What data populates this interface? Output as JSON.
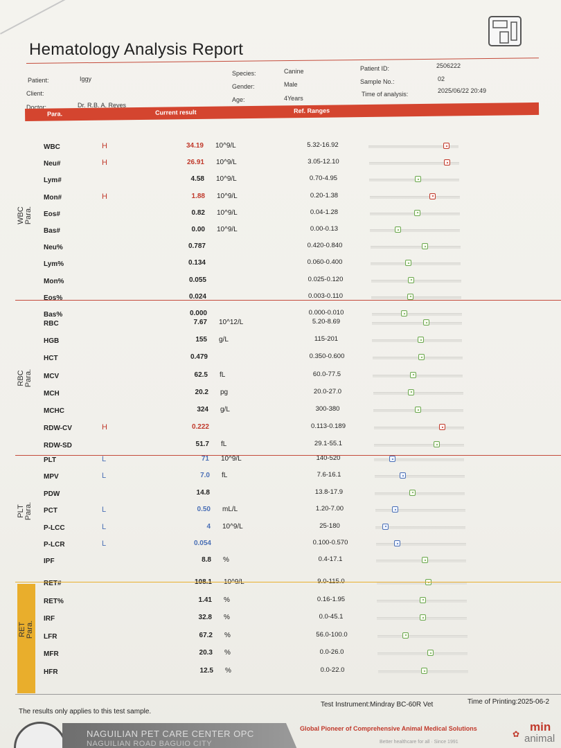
{
  "report": {
    "title": "Hematology Analysis Report",
    "patient_label": "Patient:",
    "patient": "Iggy",
    "client_label": "Client:",
    "client": "",
    "doctor_label": "Doctor:",
    "doctor": "Dr. R.B. A. Reyes",
    "species_label": "Species:",
    "species": "Canine",
    "gender_label": "Gender:",
    "gender": "Male",
    "age_label": "Age:",
    "age": "4Years",
    "patient_id_label": "Patient ID:",
    "patient_id": "2506222",
    "sample_no_label": "Sample No.:",
    "sample_no": "02",
    "time_label": "Time of analysis:",
    "time": "2025/06/22 20:49"
  },
  "columns": {
    "para": "Para.",
    "current": "Current result",
    "ref": "Ref. Ranges"
  },
  "groups": {
    "wbc": "WBC\nPara.",
    "rbc": "RBC\nPara.",
    "plt": "PLT\nPara.",
    "ret": "RET\nPara."
  },
  "rows": [
    {
      "name": "WBC",
      "flag": "H",
      "value": "34.19",
      "unit": "10^9/L",
      "ref": "5.32-16.92",
      "pos": 0.9
    },
    {
      "name": "Neu#",
      "flag": "H",
      "value": "26.91",
      "unit": "10^9/L",
      "ref": "3.05-12.10",
      "pos": 0.9
    },
    {
      "name": "Lym#",
      "flag": "",
      "value": "4.58",
      "unit": "10^9/L",
      "ref": "0.70-4.95",
      "pos": 0.55
    },
    {
      "name": "Mon#",
      "flag": "H",
      "value": "1.88",
      "unit": "10^9/L",
      "ref": "0.20-1.38",
      "pos": 0.72
    },
    {
      "name": "Eos#",
      "flag": "",
      "value": "0.82",
      "unit": "10^9/L",
      "ref": "0.04-1.28",
      "pos": 0.53
    },
    {
      "name": "Bas#",
      "flag": "",
      "value": "0.00",
      "unit": "10^9/L",
      "ref": "0.00-0.13",
      "pos": 0.3
    },
    {
      "name": "Neu%",
      "flag": "",
      "value": "0.787",
      "unit": "",
      "ref": "0.420-0.840",
      "pos": 0.62
    },
    {
      "name": "Lym%",
      "flag": "",
      "value": "0.134",
      "unit": "",
      "ref": "0.060-0.400",
      "pos": 0.42
    },
    {
      "name": "Mon%",
      "flag": "",
      "value": "0.055",
      "unit": "",
      "ref": "0.025-0.120",
      "pos": 0.44
    },
    {
      "name": "Eos%",
      "flag": "",
      "value": "0.024",
      "unit": "",
      "ref": "0.003-0.110",
      "pos": 0.43
    },
    {
      "name": "Bas%",
      "flag": "",
      "value": "0.000",
      "unit": "",
      "ref": "0.000-0.010",
      "pos": 0.35
    },
    {
      "name": "RBC",
      "flag": "",
      "value": "7.67",
      "unit": "10^12/L",
      "ref": "5.20-8.69",
      "pos": 0.62
    },
    {
      "name": "HGB",
      "flag": "",
      "value": "155",
      "unit": "g/L",
      "ref": "115-201",
      "pos": 0.55
    },
    {
      "name": "HCT",
      "flag": "",
      "value": "0.479",
      "unit": "",
      "ref": "0.350-0.600",
      "pos": 0.55
    },
    {
      "name": "MCV",
      "flag": "",
      "value": "62.5",
      "unit": "fL",
      "ref": "60.0-77.5",
      "pos": 0.45
    },
    {
      "name": "MCH",
      "flag": "",
      "value": "20.2",
      "unit": "pg",
      "ref": "20.0-27.0",
      "pos": 0.42
    },
    {
      "name": "MCHC",
      "flag": "",
      "value": "324",
      "unit": "g/L",
      "ref": "300-380",
      "pos": 0.5
    },
    {
      "name": "RDW-CV",
      "flag": "H",
      "value": "0.222",
      "unit": "",
      "ref": "0.113-0.189",
      "pos": 0.78
    },
    {
      "name": "RDW-SD",
      "flag": "",
      "value": "51.7",
      "unit": "fL",
      "ref": "29.1-55.1",
      "pos": 0.72
    },
    {
      "name": "PLT",
      "flag": "L",
      "value": "71",
      "unit": "10^9/L",
      "ref": "140-520",
      "pos": 0.18
    },
    {
      "name": "MPV",
      "flag": "L",
      "value": "7.0",
      "unit": "fL",
      "ref": "7.6-16.1",
      "pos": 0.3
    },
    {
      "name": "PDW",
      "flag": "",
      "value": "14.8",
      "unit": "",
      "ref": "13.8-17.9",
      "pos": 0.42
    },
    {
      "name": "PCT",
      "flag": "L",
      "value": "0.50",
      "unit": "mL/L",
      "ref": "1.20-7.00",
      "pos": 0.2
    },
    {
      "name": "P-LCC",
      "flag": "L",
      "value": "4",
      "unit": "10^9/L",
      "ref": "25-180",
      "pos": 0.08
    },
    {
      "name": "P-LCR",
      "flag": "L",
      "value": "0.054",
      "unit": "",
      "ref": "0.100-0.570",
      "pos": 0.22
    },
    {
      "name": "IPF",
      "flag": "",
      "value": "8.8",
      "unit": "%",
      "ref": "0.4-17.1",
      "pos": 0.55
    },
    {
      "name": "RET#",
      "flag": "",
      "value": "108.1",
      "unit": "10^9/L",
      "ref": "9.0-115.0",
      "pos": 0.58
    },
    {
      "name": "RET%",
      "flag": "",
      "value": "1.41",
      "unit": "%",
      "ref": "0.16-1.95",
      "pos": 0.52
    },
    {
      "name": "IRF",
      "flag": "",
      "value": "32.8",
      "unit": "%",
      "ref": "0.0-45.1",
      "pos": 0.52
    },
    {
      "name": "LFR",
      "flag": "",
      "value": "67.2",
      "unit": "%",
      "ref": "56.0-100.0",
      "pos": 0.3
    },
    {
      "name": "MFR",
      "flag": "",
      "value": "20.3",
      "unit": "%",
      "ref": "0.0-26.0",
      "pos": 0.6
    },
    {
      "name": "HFR",
      "flag": "",
      "value": "12.5",
      "unit": "%",
      "ref": "0.0-22.0",
      "pos": 0.52
    }
  ],
  "footer": {
    "note": "The results only applies to this test sample.",
    "instrument": "Test Instrument:Mindray BC-60R Vet",
    "printing": "Time of Printing:2025-06-2",
    "clinic": "NAGUILIAN PET CARE CENTER OPC",
    "clinic_addr": "NAGUILIAN ROAD BAGUIO CITY",
    "pioneer": "Global Pioneer of Comprehensive Animal Medical Solutions",
    "pioneer_sub": "Better healthcare for all  ·  Since 1991",
    "brand": "min",
    "brand_sub": "animal"
  },
  "colors": {
    "high": "#c0392b",
    "low": "#4a6fb5",
    "normal": "#6aa84f",
    "accent": "#d4452f",
    "ret_band": "#e9ae2c"
  }
}
